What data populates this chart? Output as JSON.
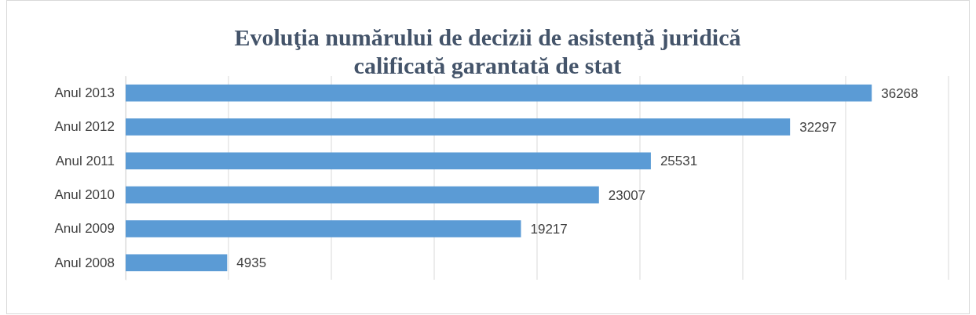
{
  "chart_data": {
    "type": "bar",
    "orientation": "horizontal",
    "title": "Evoluţia numărului de decizii de asistenţă juridică calificată garantată de stat",
    "categories": [
      "Anul 2013",
      "Anul 2012",
      "Anul 2011",
      "Anul 2010",
      "Anul 2009",
      "Anul 2008"
    ],
    "values": [
      36268,
      32297,
      25531,
      23007,
      19217,
      4935
    ],
    "color": "#5b9bd5",
    "xlim": [
      0,
      40000
    ],
    "xticks": [
      {
        "value": 0,
        "label": null
      },
      {
        "value": 5000,
        "label": null
      },
      {
        "value": 10000,
        "label": null
      },
      {
        "value": 15000,
        "label": null
      },
      {
        "value": 20000,
        "label": null
      },
      {
        "value": 25000,
        "label": null
      },
      {
        "value": 30000,
        "label": null
      },
      {
        "value": 35000,
        "label": null
      },
      {
        "value": 40000,
        "label": null
      }
    ],
    "grid": "x",
    "tick_labels": "y",
    "data_labels": true
  }
}
